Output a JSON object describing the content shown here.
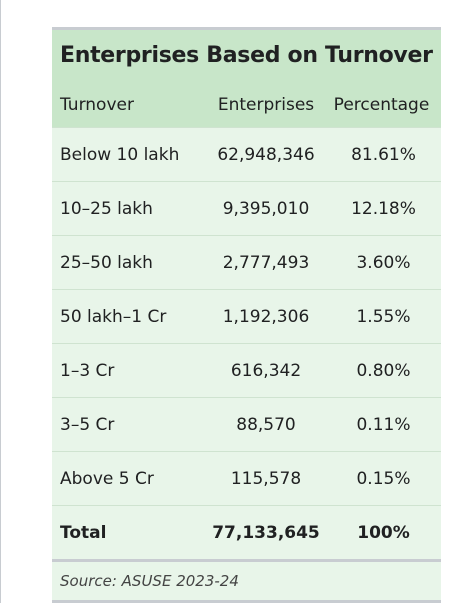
{
  "table": {
    "title": "Enterprises Based on Turnover",
    "headers": [
      "Turnover",
      "Enterprises",
      "Percentage"
    ],
    "rows": [
      [
        "Below 10 lakh",
        "62,948,346",
        "81.61%"
      ],
      [
        "10–25 lakh",
        "9,395,010",
        "12.18%"
      ],
      [
        "25–50 lakh",
        "2,777,493",
        "3.60%"
      ],
      [
        "50 lakh–1 Cr",
        "1,192,306",
        "1.55%"
      ],
      [
        "1–3 Cr",
        "616,342",
        "0.80%"
      ],
      [
        "3–5 Cr",
        "88,570",
        "0.11%"
      ],
      [
        "Above 5 Cr",
        "115,578",
        "0.15%"
      ]
    ],
    "total": [
      "Total",
      "77,133,645",
      "100%"
    ],
    "source": "Source: ASUSE 2023-24"
  }
}
